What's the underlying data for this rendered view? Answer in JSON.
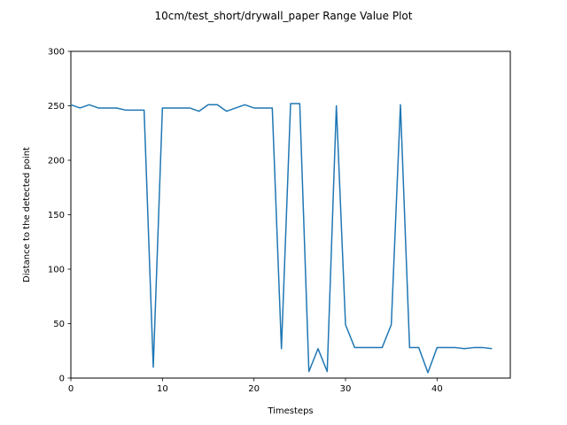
{
  "chart_data": {
    "type": "line",
    "title": "10cm/test_short/drywall_paper Range Value Plot",
    "xlabel": "Timesteps",
    "ylabel": "Distance to the detected point",
    "xlim": [
      0,
      48
    ],
    "ylim": [
      0,
      300
    ],
    "xticks": [
      0,
      10,
      20,
      30,
      40
    ],
    "yticks": [
      0,
      50,
      100,
      150,
      200,
      250,
      300
    ],
    "grid": false,
    "series": [
      {
        "color": "#1f77b4",
        "x": [
          0,
          1,
          2,
          3,
          4,
          5,
          6,
          7,
          8,
          9,
          10,
          11,
          12,
          13,
          14,
          15,
          16,
          17,
          18,
          19,
          20,
          21,
          22,
          23,
          24,
          25,
          26,
          27,
          28,
          29,
          30,
          31,
          32,
          33,
          34,
          35,
          36,
          37,
          38,
          39,
          40,
          41,
          42,
          43,
          44,
          45,
          46
        ],
        "y": [
          251,
          248,
          251,
          248,
          248,
          248,
          246,
          246,
          246,
          10,
          248,
          248,
          248,
          248,
          245,
          251,
          251,
          245,
          248,
          251,
          248,
          248,
          248,
          27,
          252,
          252,
          6,
          27,
          6,
          250,
          49,
          28,
          28,
          28,
          28,
          49,
          251,
          28,
          28,
          5,
          28,
          28,
          28,
          27,
          28,
          28,
          27
        ]
      }
    ]
  }
}
